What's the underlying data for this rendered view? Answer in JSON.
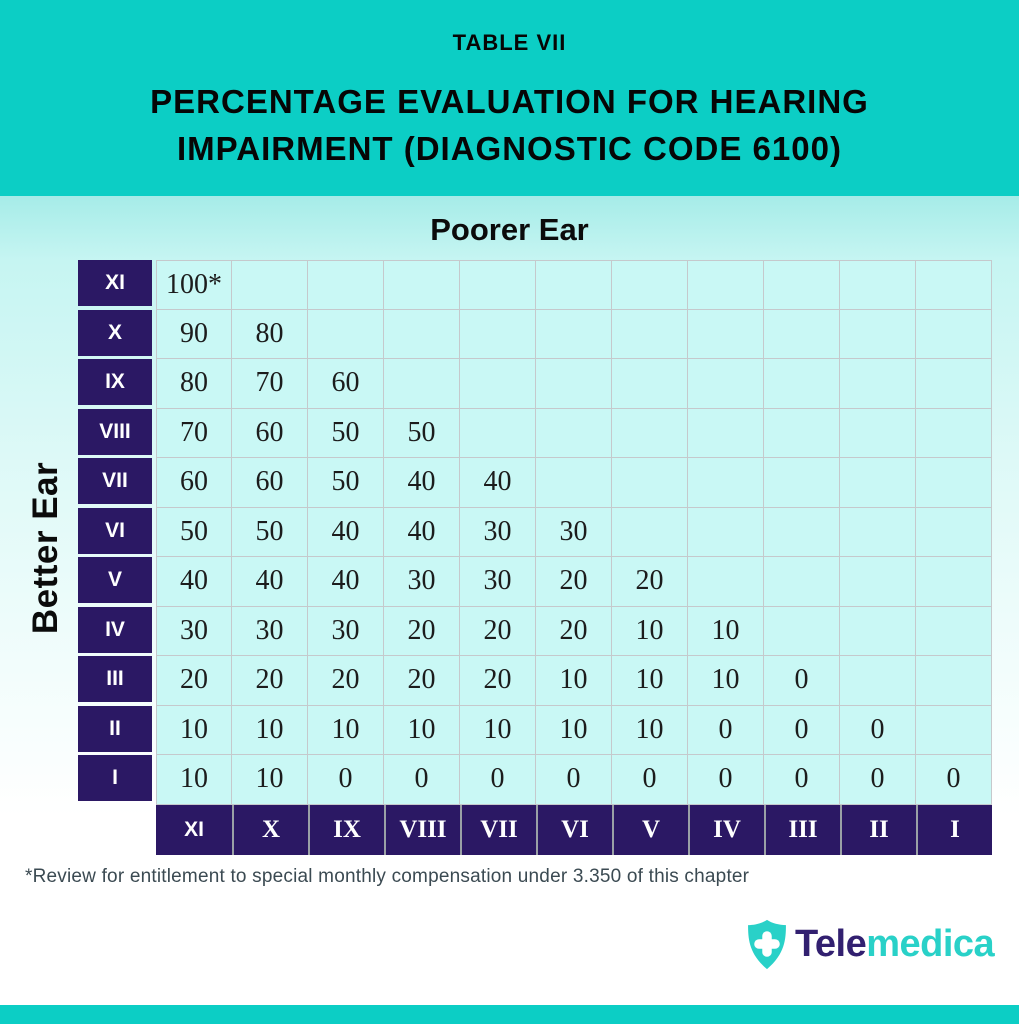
{
  "header": {
    "table_label": "TABLE VII",
    "title_line1": "PERCENTAGE EVALUATION FOR HEARING",
    "title_line2": "IMPAIRMENT (DIAGNOSTIC CODE 6100)"
  },
  "chart_data": {
    "type": "table",
    "table_label": "TABLE VII",
    "title": "PERCENTAGE EVALUATION FOR HEARING IMPAIRMENT (DIAGNOSTIC CODE 6100)",
    "column_axis_label": "Poorer Ear",
    "row_axis_label": "Better Ear",
    "row_labels": [
      "XI",
      "X",
      "IX",
      "VIII",
      "VII",
      "VI",
      "V",
      "IV",
      "III",
      "II",
      "I"
    ],
    "column_labels": [
      "XI",
      "X",
      "IX",
      "VIII",
      "VII",
      "VI",
      "V",
      "IV",
      "III",
      "II",
      "I"
    ],
    "rows": [
      [
        "100*"
      ],
      [
        "90",
        "80"
      ],
      [
        "80",
        "70",
        "60"
      ],
      [
        "70",
        "60",
        "50",
        "50"
      ],
      [
        "60",
        "60",
        "50",
        "40",
        "40"
      ],
      [
        "50",
        "50",
        "40",
        "40",
        "30",
        "30"
      ],
      [
        "40",
        "40",
        "40",
        "30",
        "30",
        "20",
        "20"
      ],
      [
        "30",
        "30",
        "30",
        "20",
        "20",
        "20",
        "10",
        "10"
      ],
      [
        "20",
        "20",
        "20",
        "20",
        "20",
        "10",
        "10",
        "10",
        "0"
      ],
      [
        "10",
        "10",
        "10",
        "10",
        "10",
        "10",
        "10",
        "0",
        "0",
        "0"
      ],
      [
        "10",
        "10",
        "0",
        "0",
        "0",
        "0",
        "0",
        "0",
        "0",
        "0",
        "0"
      ]
    ],
    "footnote": "*Review for entitlement to special monthly compensation under 3.350 of this chapter"
  },
  "logo": {
    "brand_first": "Tele",
    "brand_second": "medica",
    "icon": "shield-cross-icon"
  },
  "colors": {
    "teal": "#0ccec5",
    "purple": "#2b1864",
    "cell_bg": "#c9f8f5",
    "grid_line": "#c5c9cc",
    "logo_navy": "#322070",
    "logo_teal": "#29d1c8",
    "footnote_text": "#3b4a52",
    "title_text": "#060606"
  }
}
